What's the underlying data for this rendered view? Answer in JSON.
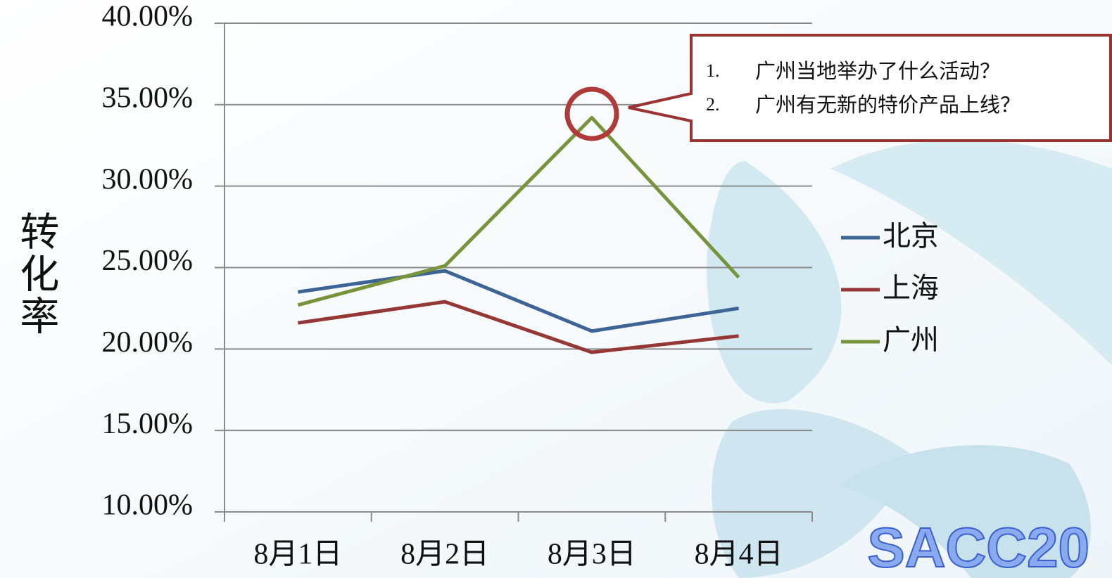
{
  "chart_data": {
    "type": "line",
    "y_label": "转化率",
    "categories": [
      "8月1日",
      "8月2日",
      "8月3日",
      "8月4日"
    ],
    "series": [
      {
        "name": "北京",
        "color": "#3c6494",
        "values": [
          23.5,
          24.8,
          21.1,
          22.5
        ]
      },
      {
        "name": "上海",
        "color": "#953735",
        "values": [
          21.6,
          22.9,
          19.8,
          20.8
        ]
      },
      {
        "name": "广州",
        "color": "#77933c",
        "values": [
          22.7,
          25.1,
          34.2,
          24.4
        ]
      }
    ],
    "ylim": [
      10,
      40
    ],
    "yticks": [
      {
        "value": 10,
        "label": "10.00%"
      },
      {
        "value": 15,
        "label": "15.00%"
      },
      {
        "value": 20,
        "label": "20.00%"
      },
      {
        "value": 25,
        "label": "25.00%"
      },
      {
        "value": 30,
        "label": "30.00%"
      },
      {
        "value": 35,
        "label": "35.00%"
      },
      {
        "value": 40,
        "label": "40.00%"
      }
    ],
    "grid": true,
    "legend": "right",
    "annotations": [
      {
        "marker": "1.",
        "text": "广州当地举办了什么活动？"
      },
      {
        "marker": "2.",
        "text": "广州有无新的特价产品上线？"
      }
    ],
    "watermark": "SACC20"
  }
}
